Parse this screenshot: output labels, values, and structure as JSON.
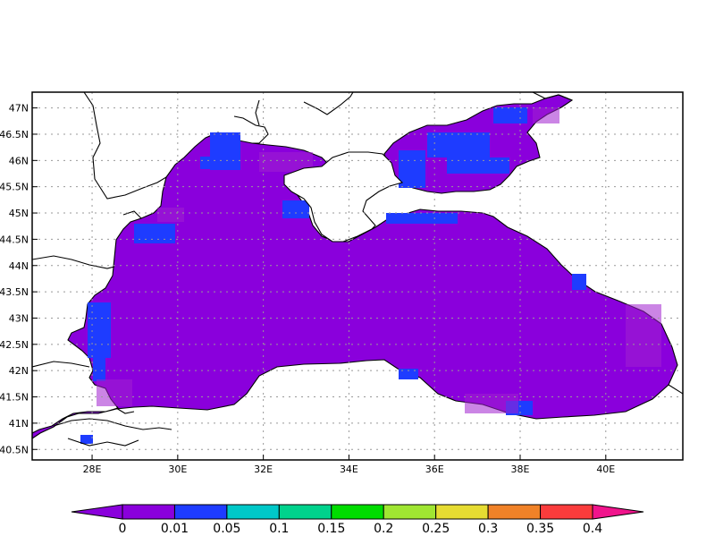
{
  "map": {
    "region": "Black Sea",
    "projection": "lat-lon",
    "lon_range": [
      26.6,
      41.8
    ],
    "lat_range": [
      40.3,
      47.3
    ],
    "grid": "dotted",
    "lon_ticks": [
      "28E",
      "30E",
      "32E",
      "34E",
      "36E",
      "38E",
      "40E"
    ],
    "lat_ticks": [
      "40.5N",
      "41N",
      "41.5N",
      "42N",
      "42.5N",
      "43N",
      "43.5N",
      "44N",
      "44.5N",
      "45N",
      "45.5N",
      "46N",
      "46.5N",
      "47N"
    ],
    "background_value": "0-0.01",
    "patches_value": "0.01-0.05"
  },
  "colorbar": {
    "labels": [
      "0",
      "0.01",
      "0.05",
      "0.1",
      "0.15",
      "0.2",
      "0.25",
      "0.3",
      "0.35",
      "0.4"
    ],
    "colors": [
      "#8a00dc",
      "#8a00dc",
      "#1e3cff",
      "#00c8c8",
      "#00d28c",
      "#00dc00",
      "#a0e632",
      "#e6dc32",
      "#f08228",
      "#fa3c3c",
      "#f0148c"
    ]
  }
}
